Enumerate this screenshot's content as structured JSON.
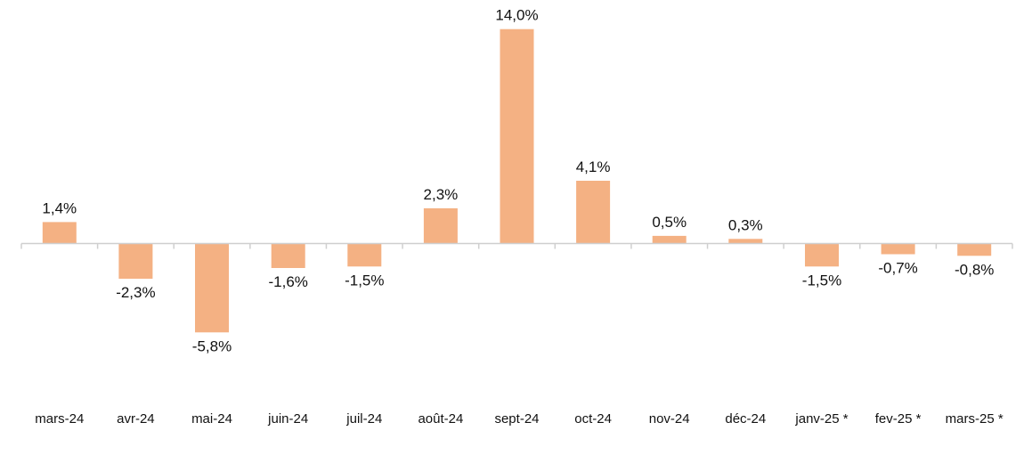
{
  "chart_data": {
    "type": "bar",
    "title": "",
    "xlabel": "",
    "ylabel": "",
    "grid": false,
    "legend": "none",
    "ylim": [
      -7,
      14
    ],
    "categories": [
      "mars-24",
      "avr-24",
      "mai-24",
      "juin-24",
      "juil-24",
      "août-24",
      "sept-24",
      "oct-24",
      "nov-24",
      "déc-24",
      "janv-25 *",
      "fev-25 *",
      "mars-25 *"
    ],
    "values": [
      1.4,
      -2.3,
      -5.8,
      -1.6,
      -1.5,
      2.3,
      14.0,
      4.1,
      0.5,
      0.3,
      -1.5,
      -0.7,
      -0.8
    ],
    "labels": [
      "1,4%",
      "-2,3%",
      "-5,8%",
      "-1,6%",
      "-1,5%",
      "2,3%",
      "14,0%",
      "4,1%",
      "0,5%",
      "0,3%",
      "-1,5%",
      "-0,7%",
      "-0,8%"
    ],
    "colors": {
      "bar": "#f4b183",
      "axis": "#cfcfcf",
      "text": "#111111"
    }
  }
}
